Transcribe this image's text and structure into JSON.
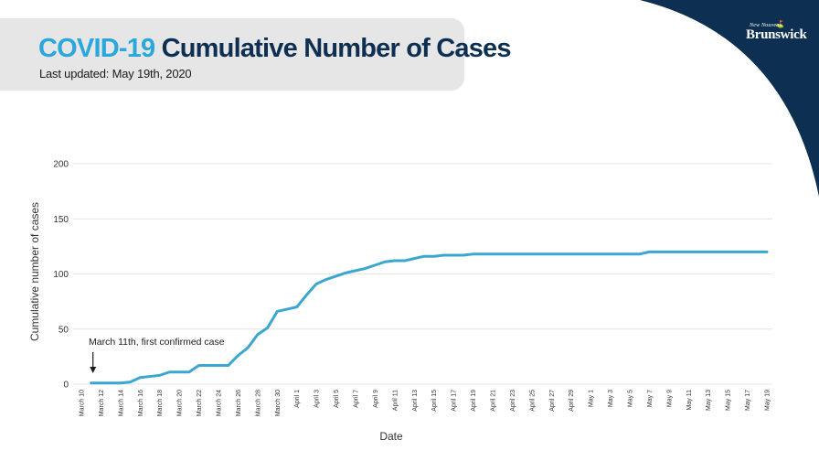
{
  "header": {
    "title_accent": "COVID-19",
    "title_main": "Cumulative Number of Cases",
    "subtitle": "Last updated: May 19th, 2020"
  },
  "logo": {
    "small_text": "New Nouveau",
    "main_text": "Brunswick"
  },
  "colors": {
    "line": "#3ba7d1",
    "corner": "#0d2f52",
    "title_accent": "#2aa7dc",
    "title_main": "#0d2f52",
    "gridline": "#e4e4e4"
  },
  "chart_data": {
    "type": "line",
    "title": "COVID-19 Cumulative Number of Cases",
    "subtitle": "Last updated: May 19th, 2020",
    "xlabel": "Date",
    "ylabel": "Cumulative number of cases",
    "ylim": [
      0,
      200
    ],
    "yticks": [
      0,
      50,
      100,
      150,
      200
    ],
    "grid": "horizontal",
    "x_tick_labels": [
      "March 10",
      "March 12",
      "March 14",
      "March 16",
      "March 18",
      "March 20",
      "March 22",
      "March 24",
      "March 26",
      "March 28",
      "March 30",
      "April 1",
      "April 3",
      "April 5",
      "April 7",
      "April 9",
      "April 11",
      "April 13",
      "April 15",
      "April 17",
      "April 19",
      "April 21",
      "April 23",
      "April 25",
      "April 27",
      "April 29",
      "May 1",
      "May 3",
      "May 5",
      "May 7",
      "May 9",
      "May 11",
      "May 13",
      "May 15",
      "May 17",
      "May 19"
    ],
    "x": [
      "March 11",
      "March 12",
      "March 13",
      "March 14",
      "March 15",
      "March 16",
      "March 17",
      "March 18",
      "March 19",
      "March 20",
      "March 21",
      "March 22",
      "March 23",
      "March 24",
      "March 25",
      "March 26",
      "March 27",
      "March 28",
      "March 29",
      "March 30",
      "March 31",
      "April 1",
      "April 2",
      "April 3",
      "April 4",
      "April 5",
      "April 6",
      "April 7",
      "April 8",
      "April 9",
      "April 10",
      "April 11",
      "April 12",
      "April 13",
      "April 14",
      "April 15",
      "April 16",
      "April 17",
      "April 18",
      "April 19",
      "April 20",
      "April 21",
      "April 22",
      "April 23",
      "April 24",
      "April 25",
      "April 26",
      "April 27",
      "April 28",
      "April 29",
      "April 30",
      "May 1",
      "May 2",
      "May 3",
      "May 4",
      "May 5",
      "May 6",
      "May 7",
      "May 8",
      "May 9",
      "May 10",
      "May 11",
      "May 12",
      "May 13",
      "May 14",
      "May 15",
      "May 16",
      "May 17",
      "May 18",
      "May 19"
    ],
    "series": [
      {
        "values": [
          1,
          1,
          1,
          1,
          2,
          6,
          7,
          8,
          11,
          11,
          11,
          17,
          17,
          17,
          17,
          26,
          33,
          45,
          51,
          66,
          68,
          70,
          81,
          91,
          95,
          98,
          101,
          103,
          105,
          108,
          111,
          112,
          112,
          114,
          116,
          116,
          117,
          117,
          117,
          118,
          118,
          118,
          118,
          118,
          118,
          118,
          118,
          118,
          118,
          118,
          118,
          118,
          118,
          118,
          118,
          118,
          118,
          120,
          120,
          120,
          120,
          120,
          120,
          120,
          120,
          120,
          120,
          120,
          120,
          120
        ]
      }
    ],
    "annotations": [
      {
        "text": "March 11th, first confirmed case",
        "x": "March 11",
        "y": 1
      }
    ]
  }
}
